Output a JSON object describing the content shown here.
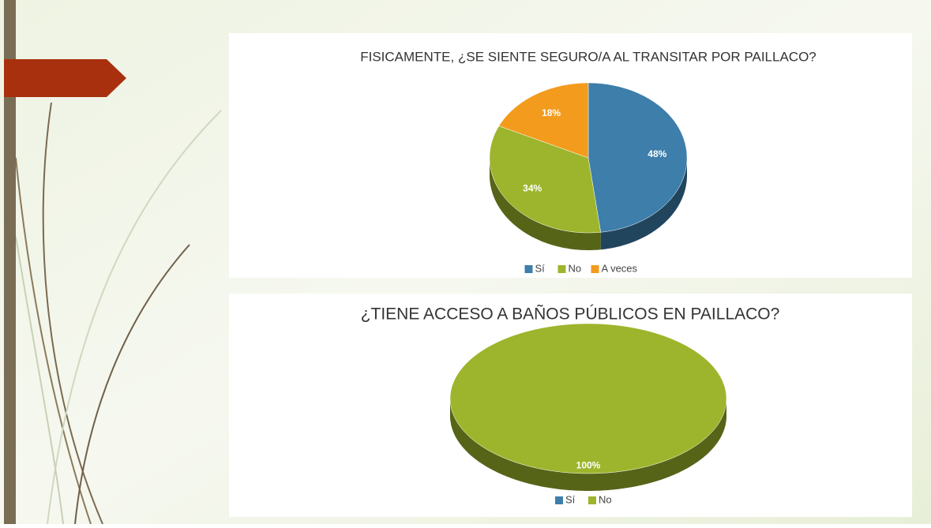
{
  "chart_data": [
    {
      "type": "pie",
      "title": "FISICAMENTE, ¿SE SIENTE SEGURO/A AL TRANSITAR POR PAILLACO?",
      "categories": [
        "Sí",
        "No",
        "A veces"
      ],
      "values": [
        48,
        34,
        18
      ],
      "value_labels": [
        "48%",
        "34%",
        "18%"
      ],
      "colors": [
        "#3d7eaa",
        "#9db52c",
        "#f39b1d"
      ],
      "legend": "bottom"
    },
    {
      "type": "pie",
      "title": "¿TIENE ACCESO A BAÑOS PÚBLICOS EN PAILLACO?",
      "categories": [
        "Sí",
        "No"
      ],
      "values": [
        0,
        100
      ],
      "value_labels": [
        null,
        "100%"
      ],
      "colors": [
        "#3d7eaa",
        "#9db52c"
      ],
      "legend": "bottom"
    }
  ]
}
